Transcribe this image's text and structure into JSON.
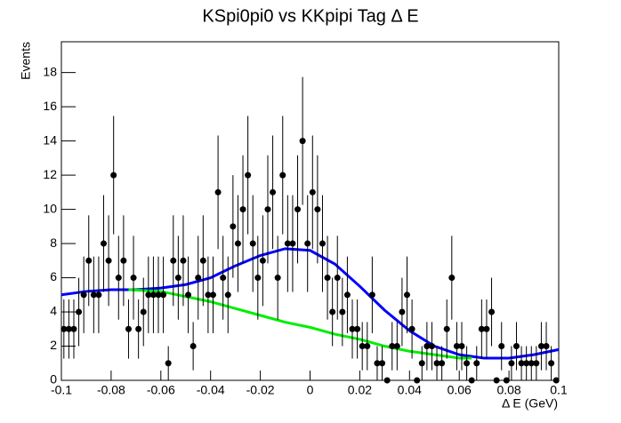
{
  "chart_data": {
    "type": "errorbar",
    "title": "KSpi0pi0 vs KKpipi Tag Δ E",
    "x_label": "Δ E (GeV)",
    "y_label": "Events",
    "xlim": [
      -0.1,
      0.1
    ],
    "ylim": [
      0,
      19.8
    ],
    "xticks": [
      -0.1,
      -0.08,
      -0.06,
      -0.04,
      -0.02,
      0,
      0.02,
      0.04,
      0.06,
      0.08,
      0.1
    ],
    "yticks": [
      0,
      2,
      4,
      6,
      8,
      10,
      12,
      14,
      16,
      18
    ],
    "x": [
      -0.099,
      -0.097,
      -0.095,
      -0.093,
      -0.091,
      -0.089,
      -0.087,
      -0.085,
      -0.083,
      -0.081,
      -0.079,
      -0.077,
      -0.075,
      -0.073,
      -0.071,
      -0.069,
      -0.067,
      -0.065,
      -0.063,
      -0.061,
      -0.059,
      -0.057,
      -0.055,
      -0.053,
      -0.051,
      -0.049,
      -0.047,
      -0.045,
      -0.043,
      -0.041,
      -0.039,
      -0.037,
      -0.035,
      -0.033,
      -0.031,
      -0.029,
      -0.027,
      -0.025,
      -0.023,
      -0.021,
      -0.019,
      -0.017,
      -0.015,
      -0.013,
      -0.011,
      -0.009,
      -0.007,
      -0.005,
      -0.003,
      -0.001,
      0.001,
      0.003,
      0.005,
      0.007,
      0.009,
      0.011,
      0.013,
      0.015,
      0.017,
      0.019,
      0.021,
      0.023,
      0.025,
      0.027,
      0.029,
      0.031,
      0.033,
      0.035,
      0.037,
      0.039,
      0.041,
      0.043,
      0.045,
      0.047,
      0.049,
      0.051,
      0.053,
      0.055,
      0.057,
      0.059,
      0.061,
      0.063,
      0.065,
      0.067,
      0.069,
      0.071,
      0.073,
      0.075,
      0.077,
      0.079,
      0.081,
      0.083,
      0.085,
      0.087,
      0.089,
      0.091,
      0.093,
      0.095,
      0.097,
      0.099
    ],
    "values": [
      3,
      3,
      3,
      4,
      5,
      7,
      5,
      5,
      8,
      7,
      12,
      6,
      7,
      3,
      6,
      3,
      4,
      5,
      5,
      5,
      5,
      1,
      7,
      6,
      7,
      5,
      2,
      6,
      7,
      5,
      5,
      11,
      6,
      5,
      9,
      8,
      10,
      12,
      8,
      6,
      7,
      10,
      11,
      6,
      12,
      8,
      8,
      10,
      14,
      8,
      11,
      10,
      8,
      6,
      4,
      6,
      4,
      5,
      3,
      3,
      2,
      2,
      5,
      1,
      1,
      0,
      2,
      2,
      4,
      5,
      3,
      0,
      1,
      2,
      2,
      1,
      1,
      3,
      6,
      2,
      2,
      1,
      0,
      1,
      3,
      3,
      4,
      0,
      2,
      0,
      1,
      2,
      1,
      1,
      1,
      1,
      2,
      2,
      1,
      0
    ],
    "errors": [
      1.73,
      1.73,
      1.73,
      2,
      2.24,
      2.65,
      2.24,
      2.24,
      2.83,
      2.65,
      3.46,
      2.45,
      2.65,
      1.73,
      2.45,
      1.73,
      2,
      2.24,
      2.24,
      2.24,
      2.24,
      1,
      2.65,
      2.45,
      2.65,
      2.24,
      1.41,
      2.45,
      2.65,
      2.24,
      2.24,
      3.32,
      2.45,
      2.24,
      3,
      2.83,
      3.16,
      3.46,
      2.83,
      2.45,
      2.65,
      3.16,
      3.32,
      2.45,
      3.46,
      2.83,
      2.83,
      3.16,
      3.74,
      2.83,
      3.32,
      3.16,
      2.83,
      2.45,
      2,
      2.45,
      2,
      2.24,
      1.73,
      1.73,
      1.41,
      1.41,
      2.24,
      1,
      1,
      0,
      1.41,
      1.41,
      2,
      2.24,
      1.73,
      0,
      1,
      1.41,
      1.41,
      1,
      1,
      1.73,
      2.45,
      1.41,
      1.41,
      1,
      0,
      1,
      1.73,
      1.73,
      2,
      0,
      1.41,
      0,
      1,
      1.41,
      1,
      1,
      1,
      1,
      1.41,
      1.41,
      1,
      0
    ],
    "color": "#000000",
    "curves": [
      {
        "color": "#0000ff",
        "x": [
          -0.1,
          -0.09,
          -0.08,
          -0.07,
          -0.06,
          -0.05,
          -0.04,
          -0.03,
          -0.02,
          -0.01,
          0,
          0.01,
          0.02,
          0.03,
          0.04,
          0.05,
          0.06,
          0.07,
          0.08,
          0.09,
          0.1
        ],
        "values": [
          5.0,
          5.2,
          5.3,
          5.3,
          5.4,
          5.6,
          6.0,
          6.7,
          7.3,
          7.7,
          7.6,
          6.8,
          5.5,
          4.1,
          2.9,
          2.0,
          1.5,
          1.3,
          1.3,
          1.5,
          1.8
        ]
      },
      {
        "color": "#00ee00",
        "x": [
          -0.073,
          -0.06,
          -0.05,
          -0.04,
          -0.03,
          -0.02,
          -0.01,
          0,
          0.01,
          0.02,
          0.03,
          0.04,
          0.05,
          0.06,
          0.065
        ],
        "values": [
          5.3,
          5.2,
          4.9,
          4.6,
          4.2,
          3.8,
          3.4,
          3.1,
          2.7,
          2.4,
          2.0,
          1.7,
          1.5,
          1.3,
          1.3
        ]
      }
    ]
  }
}
